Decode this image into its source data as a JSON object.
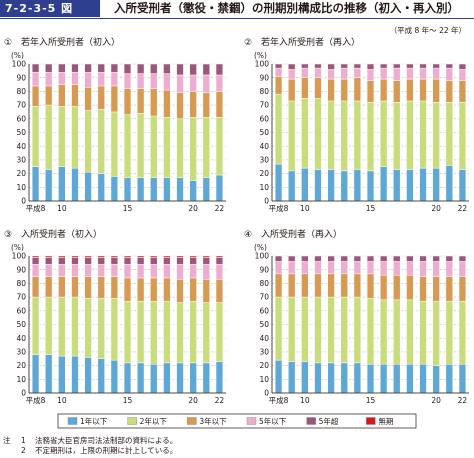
{
  "header": {
    "figure_number": "7-2-3-5 図",
    "title": "入所受刑者（懲役・禁錮）の刑期別構成比の推移（初入・再入別）",
    "period_note": "（平成 8 年～ 22 年）"
  },
  "colors": {
    "1年以下": "#5fa8d6",
    "2年以下": "#c8dc7c",
    "3年以下": "#d79a52",
    "5年以下": "#ecadd0",
    "5年超": "#9a5779",
    "無期": "#d7191f"
  },
  "legend": [
    "1年以下",
    "2年以下",
    "3年以下",
    "5年以下",
    "5年超",
    "無期"
  ],
  "chart_data": [
    {
      "type": "bar",
      "stacked": true,
      "panel_number": "①",
      "title": "若年入所受刑者（初入）",
      "ylabel": "(%)",
      "ylim": [
        0,
        100
      ],
      "yticks": [
        0,
        10,
        20,
        30,
        40,
        50,
        60,
        70,
        80,
        90,
        100
      ],
      "x": [
        8,
        9,
        10,
        11,
        12,
        13,
        14,
        15,
        16,
        17,
        18,
        19,
        20,
        21,
        22
      ],
      "xtick_labels": [
        {
          "x": 8,
          "label": "平成8"
        },
        {
          "x": 10,
          "label": "10"
        },
        {
          "x": 15,
          "label": "15"
        },
        {
          "x": 20,
          "label": "20"
        },
        {
          "x": 22,
          "label": "22"
        }
      ],
      "series": [
        {
          "name": "1年以下",
          "values": [
            25,
            23,
            25,
            24,
            21,
            20,
            18,
            17,
            17,
            17,
            17,
            17,
            15,
            17,
            19
          ]
        },
        {
          "name": "2年以下",
          "values": [
            44,
            47,
            44,
            45,
            45,
            47,
            47,
            46,
            47,
            45,
            44,
            43,
            46,
            44,
            42
          ]
        },
        {
          "name": "3年以下",
          "values": [
            15,
            14,
            16,
            16,
            17,
            17,
            19,
            19,
            18,
            20,
            20,
            19,
            19,
            18,
            19
          ]
        },
        {
          "name": "5年以下",
          "values": [
            10,
            10,
            9,
            9,
            11,
            10,
            10,
            11,
            11,
            11,
            12,
            13,
            12,
            13,
            12
          ]
        },
        {
          "name": "5年超",
          "values": [
            6,
            6,
            6,
            6,
            6,
            6,
            6,
            7,
            7,
            7,
            7,
            8,
            8,
            8,
            8
          ]
        },
        {
          "name": "無期",
          "values": [
            0,
            0,
            0,
            0,
            0,
            0,
            0,
            0,
            0,
            0,
            0,
            0,
            0,
            0,
            0
          ]
        }
      ]
    },
    {
      "type": "bar",
      "stacked": true,
      "panel_number": "②",
      "title": "若年入所受刑者（再入）",
      "ylabel": "(%)",
      "ylim": [
        0,
        100
      ],
      "yticks": [
        0,
        10,
        20,
        30,
        40,
        50,
        60,
        70,
        80,
        90,
        100
      ],
      "x": [
        8,
        9,
        10,
        11,
        12,
        13,
        14,
        15,
        16,
        17,
        18,
        19,
        20,
        21,
        22
      ],
      "xtick_labels": [
        {
          "x": 8,
          "label": "平成8"
        },
        {
          "x": 10,
          "label": "10"
        },
        {
          "x": 15,
          "label": "15"
        },
        {
          "x": 20,
          "label": "20"
        },
        {
          "x": 22,
          "label": "22"
        }
      ],
      "series": [
        {
          "name": "1年以下",
          "values": [
            27,
            22,
            24,
            23,
            23,
            22,
            23,
            22,
            25,
            23,
            23,
            24,
            24,
            26,
            23
          ]
        },
        {
          "name": "2年以下",
          "values": [
            51,
            51,
            51,
            52,
            50,
            51,
            50,
            50,
            48,
            49,
            50,
            49,
            48,
            46,
            49
          ]
        },
        {
          "name": "3年以下",
          "values": [
            13,
            16,
            15,
            15,
            16,
            16,
            17,
            16,
            16,
            16,
            16,
            16,
            17,
            16,
            16
          ]
        },
        {
          "name": "5年以下",
          "values": [
            6,
            7,
            7,
            7,
            7,
            8,
            7,
            8,
            8,
            9,
            8,
            8,
            8,
            9,
            8
          ]
        },
        {
          "name": "5年超",
          "values": [
            3,
            4,
            3,
            3,
            4,
            3,
            3,
            4,
            3,
            3,
            3,
            3,
            3,
            3,
            4
          ]
        },
        {
          "name": "無期",
          "values": [
            0,
            0,
            0,
            0,
            0,
            0,
            0,
            0,
            0,
            0,
            0,
            0,
            0,
            0,
            0
          ]
        }
      ]
    },
    {
      "type": "bar",
      "stacked": true,
      "panel_number": "③",
      "title": "入所受刑者（初入）",
      "ylabel": "(%)",
      "ylim": [
        0,
        100
      ],
      "yticks": [
        0,
        10,
        20,
        30,
        40,
        50,
        60,
        70,
        80,
        90,
        100
      ],
      "x": [
        8,
        9,
        10,
        11,
        12,
        13,
        14,
        15,
        16,
        17,
        18,
        19,
        20,
        21,
        22
      ],
      "xtick_labels": [
        {
          "x": 8,
          "label": "平成8"
        },
        {
          "x": 10,
          "label": "10"
        },
        {
          "x": 15,
          "label": "15"
        },
        {
          "x": 20,
          "label": "20"
        },
        {
          "x": 22,
          "label": "22"
        }
      ],
      "series": [
        {
          "name": "1年以下",
          "values": [
            28,
            28,
            27,
            27,
            26,
            25,
            24,
            22,
            22,
            21,
            22,
            22,
            22,
            22,
            23
          ]
        },
        {
          "name": "2年以下",
          "values": [
            42,
            42,
            43,
            43,
            43,
            44,
            45,
            45,
            45,
            46,
            45,
            44,
            45,
            44,
            43
          ]
        },
        {
          "name": "3年以下",
          "values": [
            15,
            15,
            15,
            15,
            16,
            16,
            16,
            17,
            17,
            17,
            17,
            17,
            17,
            17,
            17
          ]
        },
        {
          "name": "5年以下",
          "values": [
            9,
            9,
            9,
            9,
            9,
            9,
            9,
            10,
            10,
            10,
            10,
            11,
            10,
            11,
            11
          ]
        },
        {
          "name": "5年超",
          "values": [
            5,
            5,
            5,
            5,
            5,
            5,
            5,
            5,
            5,
            5,
            5,
            5,
            5,
            5,
            5
          ]
        },
        {
          "name": "無期",
          "values": [
            1,
            1,
            1,
            1,
            1,
            1,
            1,
            1,
            1,
            1,
            1,
            1,
            1,
            1,
            1
          ]
        }
      ]
    },
    {
      "type": "bar",
      "stacked": true,
      "panel_number": "④",
      "title": "入所受刑者（再入）",
      "ylabel": "(%)",
      "ylim": [
        0,
        100
      ],
      "yticks": [
        0,
        10,
        20,
        30,
        40,
        50,
        60,
        70,
        80,
        90,
        100
      ],
      "x": [
        8,
        9,
        10,
        11,
        12,
        13,
        14,
        15,
        16,
        17,
        18,
        19,
        20,
        21,
        22
      ],
      "xtick_labels": [
        {
          "x": 8,
          "label": "平成8"
        },
        {
          "x": 10,
          "label": "10"
        },
        {
          "x": 15,
          "label": "15"
        },
        {
          "x": 20,
          "label": "20"
        },
        {
          "x": 22,
          "label": "22"
        }
      ],
      "series": [
        {
          "name": "1年以下",
          "values": [
            24,
            23,
            23,
            22,
            22,
            22,
            22,
            21,
            21,
            21,
            21,
            21,
            20,
            21,
            21
          ]
        },
        {
          "name": "2年以下",
          "values": [
            46,
            47,
            47,
            48,
            48,
            48,
            48,
            48,
            47,
            47,
            47,
            46,
            47,
            46,
            46
          ]
        },
        {
          "name": "3年以下",
          "values": [
            17,
            17,
            17,
            17,
            17,
            17,
            17,
            18,
            18,
            18,
            18,
            18,
            18,
            18,
            18
          ]
        },
        {
          "name": "5年以下",
          "values": [
            9,
            9,
            9,
            9,
            9,
            9,
            9,
            9,
            10,
            10,
            10,
            11,
            11,
            11,
            11
          ]
        },
        {
          "name": "5年超",
          "values": [
            4,
            4,
            4,
            4,
            4,
            4,
            4,
            4,
            4,
            4,
            4,
            4,
            4,
            4,
            4
          ]
        },
        {
          "name": "無期",
          "values": [
            0,
            0,
            0,
            0,
            0,
            0,
            0,
            0,
            0,
            0,
            0,
            0,
            0,
            0,
            0
          ]
        }
      ]
    }
  ],
  "notes": {
    "label": "注",
    "items": [
      {
        "num": "1",
        "text": "法務省大臣官房司法法制部の資料による。"
      },
      {
        "num": "2",
        "text": "不定期刑は，上限の刑期に計上している。"
      }
    ]
  }
}
